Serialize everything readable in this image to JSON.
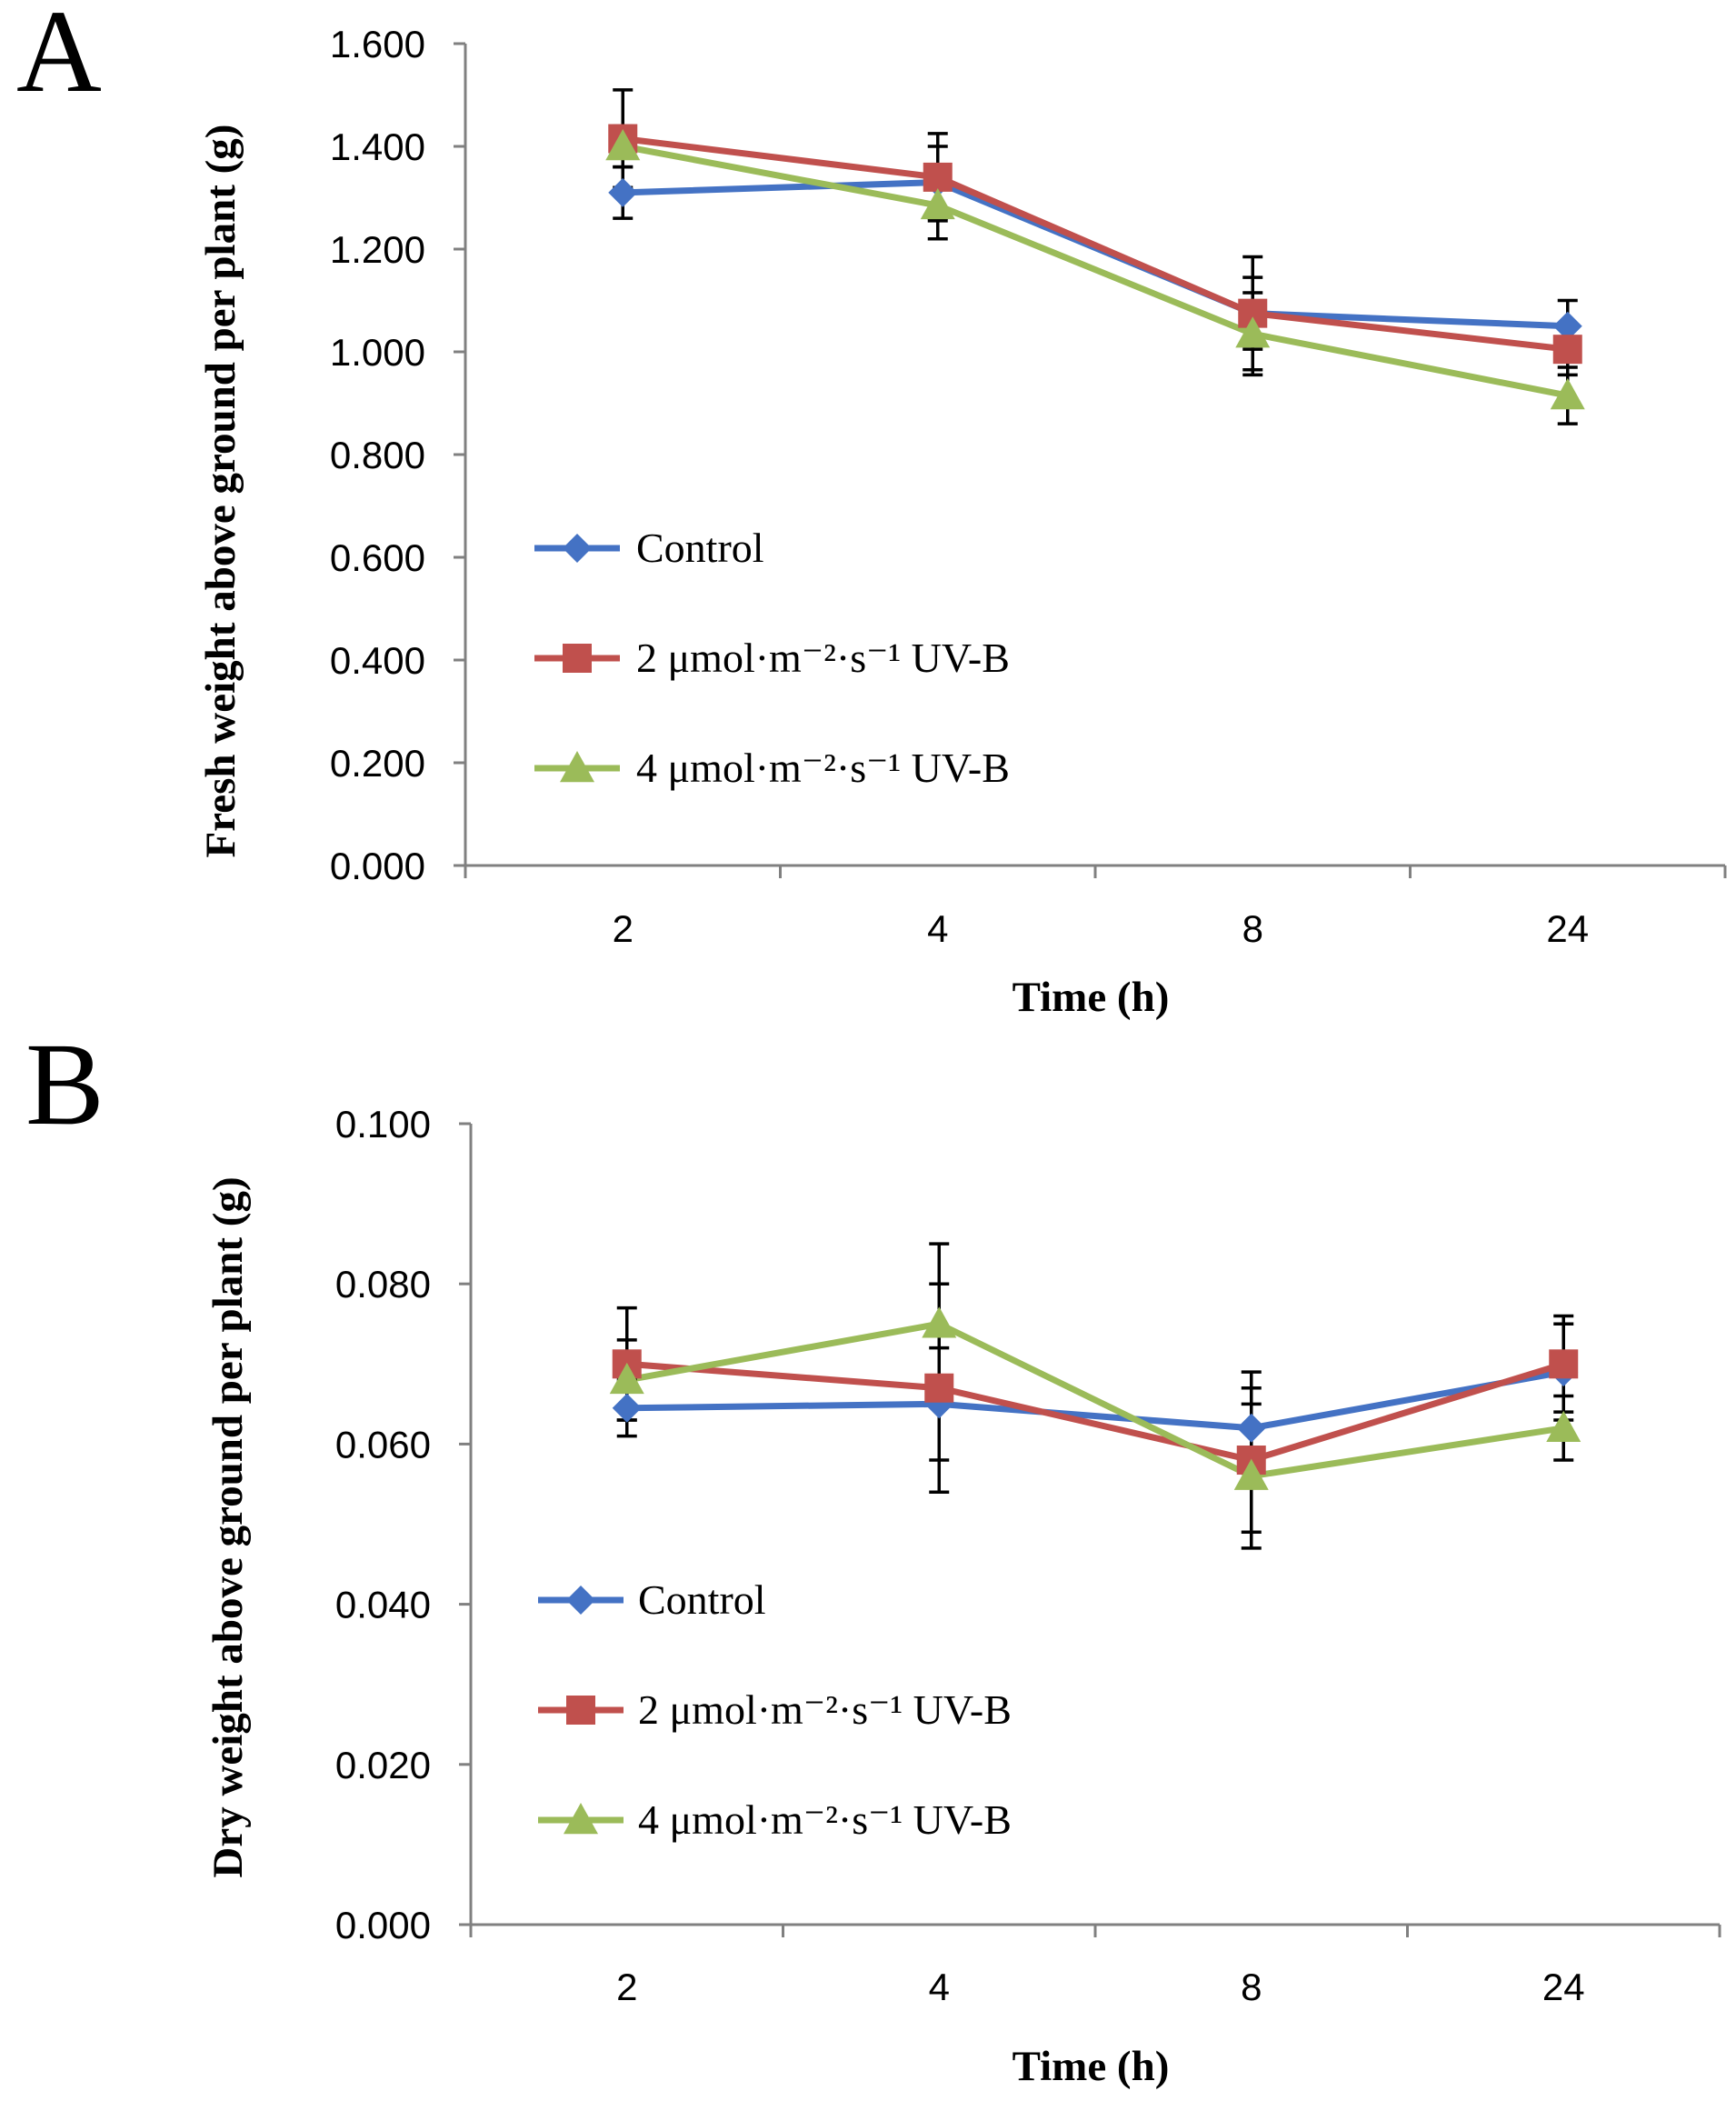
{
  "chart_data": [
    {
      "type": "line",
      "panel_label": "A",
      "title": "",
      "xlabel": "Time (h)",
      "ylabel": "Fresh weight above ground per plant (g)",
      "categories": [
        "2",
        "4",
        "8",
        "24"
      ],
      "ylim": [
        0,
        1.6
      ],
      "yticks": [
        "0.000",
        "0.200",
        "0.400",
        "0.600",
        "0.800",
        "1.000",
        "1.200",
        "1.400",
        "1.600"
      ],
      "legend_position": "center-left",
      "grid": false,
      "series": [
        {
          "name": "Control",
          "color": "#4472C4",
          "marker": "diamond",
          "values": [
            1.31,
            1.33,
            1.075,
            1.05
          ],
          "errors": [
            0.05,
            0.07,
            0.07,
            0.05
          ]
        },
        {
          "name": "2 μmol·m⁻²·s⁻¹ UV-B",
          "color": "#C0504D",
          "marker": "square",
          "values": [
            1.415,
            1.34,
            1.075,
            1.005
          ],
          "errors": [
            0.095,
            0.085,
            0.11,
            0.05
          ]
        },
        {
          "name": "4 μmol·m⁻²·s⁻¹ UV-B",
          "color": "#9BBB59",
          "marker": "triangle",
          "values": [
            1.4,
            1.285,
            1.035,
            0.915
          ],
          "errors": [
            0.04,
            0.065,
            0.08,
            0.055
          ]
        }
      ]
    },
    {
      "type": "line",
      "panel_label": "B",
      "title": "",
      "xlabel": "Time (h)",
      "ylabel": "Dry weight above ground per plant (g)",
      "categories": [
        "2",
        "4",
        "8",
        "24"
      ],
      "ylim": [
        0,
        0.1
      ],
      "yticks": [
        "0.000",
        "0.020",
        "0.040",
        "0.060",
        "0.080",
        "0.100"
      ],
      "legend_position": "center-left",
      "grid": false,
      "series": [
        {
          "name": "Control",
          "color": "#4472C4",
          "marker": "diamond",
          "values": [
            0.0645,
            0.065,
            0.062,
            0.069
          ],
          "errors": [
            0.0035,
            0.007,
            0.007,
            0.006
          ]
        },
        {
          "name": "2 μmol·m⁻²·s⁻¹ UV-B",
          "color": "#C0504D",
          "marker": "square",
          "values": [
            0.07,
            0.067,
            0.058,
            0.07
          ],
          "errors": [
            0.007,
            0.013,
            0.009,
            0.006
          ]
        },
        {
          "name": "4 μmol·m⁻²·s⁻¹ UV-B",
          "color": "#9BBB59",
          "marker": "triangle",
          "values": [
            0.068,
            0.075,
            0.056,
            0.062
          ],
          "errors": [
            0.005,
            0.01,
            0.009,
            0.004
          ]
        }
      ]
    }
  ]
}
